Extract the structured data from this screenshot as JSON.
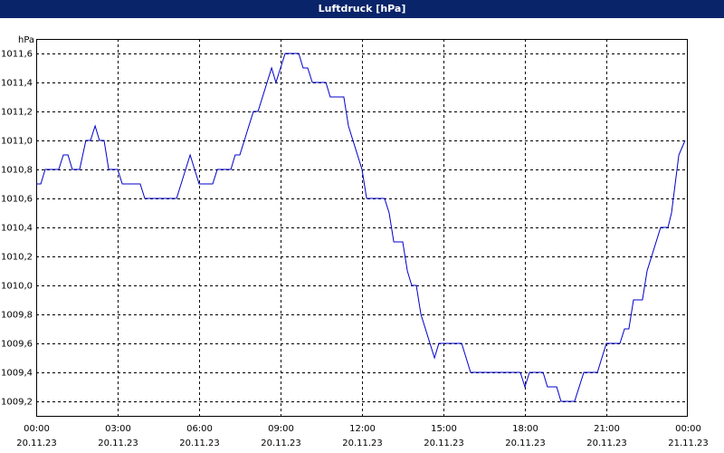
{
  "chart_data": {
    "type": "line",
    "title": "Luftdruck [hPa]",
    "y_unit": "hPa",
    "xlim": [
      0,
      24
    ],
    "xticks": [
      {
        "value": 0,
        "label": [
          "00:00",
          "20.11.23"
        ]
      },
      {
        "value": 3,
        "label": [
          "03:00",
          "20.11.23"
        ]
      },
      {
        "value": 6,
        "label": [
          "06:00",
          "20.11.23"
        ]
      },
      {
        "value": 9,
        "label": [
          "09:00",
          "20.11.23"
        ]
      },
      {
        "value": 12,
        "label": [
          "12:00",
          "20.11.23"
        ]
      },
      {
        "value": 15,
        "label": [
          "15:00",
          "20.11.23"
        ]
      },
      {
        "value": 18,
        "label": [
          "18:00",
          "20.11.23"
        ]
      },
      {
        "value": 21,
        "label": [
          "21:00",
          "20.11.23"
        ]
      },
      {
        "value": 24,
        "label": [
          "00:00",
          "21.11.23"
        ]
      }
    ],
    "ylim": [
      1009.1,
      1011.7
    ],
    "yticks": [
      {
        "value": 1009.2,
        "label": "1009,2"
      },
      {
        "value": 1009.4,
        "label": "1009,4"
      },
      {
        "value": 1009.6,
        "label": "1009,6"
      },
      {
        "value": 1009.8,
        "label": "1009,8"
      },
      {
        "value": 1010.0,
        "label": "1010,0"
      },
      {
        "value": 1010.2,
        "label": "1010,2"
      },
      {
        "value": 1010.4,
        "label": "1010,4"
      },
      {
        "value": 1010.6,
        "label": "1010,6"
      },
      {
        "value": 1010.8,
        "label": "1010,8"
      },
      {
        "value": 1011.0,
        "label": "1011,0"
      },
      {
        "value": 1011.2,
        "label": "1011,2"
      },
      {
        "value": 1011.4,
        "label": "1011,4"
      },
      {
        "value": 1011.6,
        "label": "1011,6"
      }
    ],
    "grid": true,
    "x": [
      0,
      0.17,
      0.33,
      0.83,
      1,
      1.17,
      1.33,
      1.6,
      1.83,
      2,
      2.17,
      2.33,
      2.5,
      2.67,
      3,
      3.17,
      3.83,
      4,
      5.17,
      5.67,
      6,
      6.5,
      6.67,
      7.17,
      7.33,
      7.5,
      8,
      8.17,
      8.67,
      8.83,
      9.17,
      9.67,
      9.83,
      10,
      10.17,
      10.67,
      10.83,
      11.33,
      11.5,
      12,
      12.17,
      12.83,
      13,
      13.17,
      13.5,
      13.67,
      13.83,
      14,
      14.17,
      14.67,
      14.83,
      15.67,
      16,
      17.83,
      18,
      18.17,
      18.67,
      18.83,
      19.17,
      19.33,
      19.83,
      20.17,
      20.67,
      21,
      21.5,
      21.67,
      21.83,
      22,
      22.33,
      22.5,
      23,
      23.27,
      23.4,
      23.67,
      23.9
    ],
    "series": [
      {
        "color": "#0000cc",
        "values": [
          1010.7,
          1010.7,
          1010.8,
          1010.8,
          1010.9,
          1010.9,
          1010.8,
          1010.8,
          1011.0,
          1011.0,
          1011.1,
          1011.0,
          1011.0,
          1010.8,
          1010.8,
          1010.7,
          1010.7,
          1010.6,
          1010.6,
          1010.9,
          1010.7,
          1010.7,
          1010.8,
          1010.8,
          1010.9,
          1010.9,
          1011.2,
          1011.2,
          1011.5,
          1011.4,
          1011.6,
          1011.6,
          1011.5,
          1011.5,
          1011.4,
          1011.4,
          1011.3,
          1011.3,
          1011.1,
          1010.8,
          1010.6,
          1010.6,
          1010.5,
          1010.3,
          1010.3,
          1010.1,
          1010.0,
          1010.0,
          1009.8,
          1009.5,
          1009.6,
          1009.6,
          1009.4,
          1009.4,
          1009.3,
          1009.4,
          1009.4,
          1009.3,
          1009.3,
          1009.2,
          1009.2,
          1009.4,
          1009.4,
          1009.6,
          1009.6,
          1009.7,
          1009.7,
          1009.9,
          1009.9,
          1010.1,
          1010.4,
          1010.4,
          1010.5,
          1010.9,
          1011.0
        ]
      }
    ]
  }
}
